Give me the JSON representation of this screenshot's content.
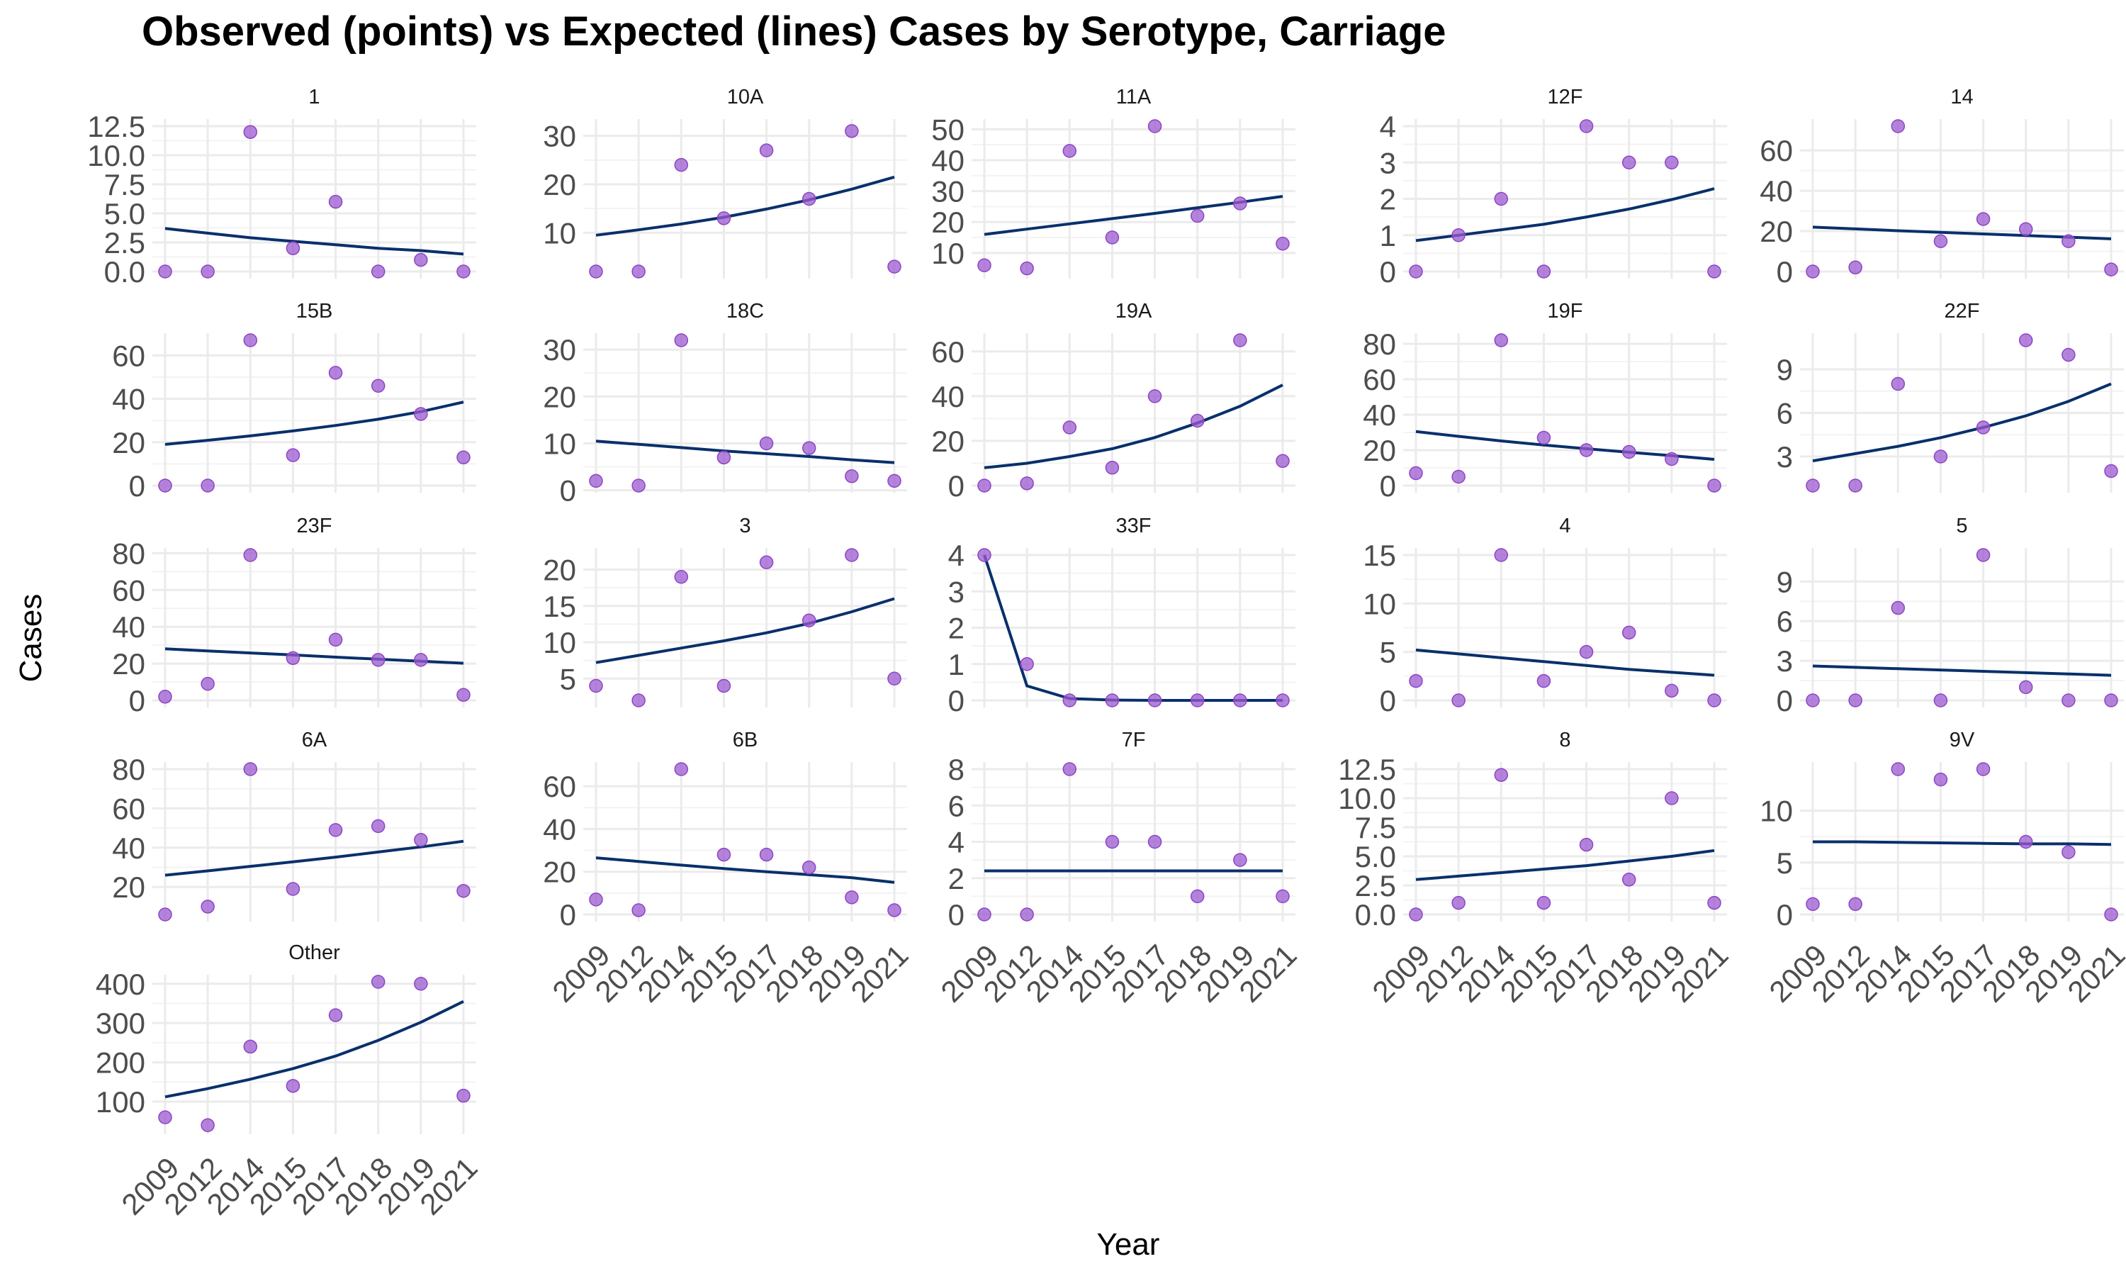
{
  "title": "Observed (points) vs Expected (lines) Cases by Serotype, Carriage",
  "xlabel": "Year",
  "ylabel": "Cases",
  "colors": {
    "observed": "#9b59d0",
    "expected": "#08306b",
    "grid": "#ebebeb"
  },
  "chart_data": {
    "type": "scatter",
    "title": "Observed (points) vs Expected (lines) Cases by Serotype, Carriage",
    "xlabel": "Year",
    "ylabel": "Cases",
    "x": [
      "2009",
      "2012",
      "2014",
      "2015",
      "2017",
      "2018",
      "2019",
      "2021"
    ],
    "layout": "facet grid, 5 columns, 5 rows, free y scales",
    "grid": true,
    "panels": [
      {
        "name": "1",
        "ylim": [
          0,
          12.5
        ],
        "yticks": [
          "0.0",
          "2.5",
          "5.0",
          "7.5",
          "10.0",
          "12.5"
        ],
        "tick_values": [
          0,
          2.5,
          5,
          7.5,
          10,
          12.5
        ],
        "observed": [
          0,
          0,
          12,
          2,
          6,
          0,
          1,
          0
        ],
        "expected": [
          3.7,
          3.3,
          2.9,
          2.6,
          2.3,
          2.0,
          1.8,
          1.5
        ]
      },
      {
        "name": "10A",
        "ylim": [
          2,
          32
        ],
        "yticks": [
          "10",
          "20",
          "30"
        ],
        "tick_values": [
          10,
          20,
          30
        ],
        "observed": [
          2,
          2,
          24,
          13,
          27,
          17,
          31,
          3
        ],
        "expected": [
          9.5,
          10.6,
          11.8,
          13.2,
          14.9,
          16.8,
          19.0,
          21.5
        ]
      },
      {
        "name": "11A",
        "ylim": [
          4,
          51
        ],
        "yticks": [
          "10",
          "20",
          "30",
          "40",
          "50"
        ],
        "tick_values": [
          10,
          20,
          30,
          40,
          50
        ],
        "observed": [
          6,
          5,
          43,
          15,
          51,
          22,
          26,
          13
        ],
        "expected": [
          16,
          17.7,
          19.4,
          21.1,
          22.8,
          24.6,
          26.4,
          28.3
        ]
      },
      {
        "name": "12F",
        "ylim": [
          0,
          4
        ],
        "yticks": [
          "0",
          "1",
          "2",
          "3",
          "4"
        ],
        "tick_values": [
          0,
          1,
          2,
          3,
          4
        ],
        "observed": [
          0,
          1,
          2,
          0,
          4,
          3,
          3,
          0
        ],
        "expected": [
          0.85,
          1.0,
          1.15,
          1.3,
          1.5,
          1.72,
          1.98,
          2.28
        ]
      },
      {
        "name": "14",
        "ylim": [
          0,
          72
        ],
        "yticks": [
          "0",
          "20",
          "40",
          "60"
        ],
        "tick_values": [
          0,
          20,
          40,
          60
        ],
        "observed": [
          0,
          2,
          72,
          15,
          26,
          21,
          15,
          1
        ],
        "expected": [
          22,
          21.1,
          20.2,
          19.4,
          18.6,
          17.8,
          17.0,
          16.2
        ]
      },
      {
        "name": "15B",
        "ylim": [
          0,
          67
        ],
        "yticks": [
          "0",
          "20",
          "40",
          "60"
        ],
        "tick_values": [
          0,
          20,
          40,
          60
        ],
        "observed": [
          0,
          0,
          67,
          14,
          52,
          46,
          33,
          13
        ],
        "expected": [
          19,
          20.9,
          22.9,
          25.2,
          27.7,
          30.6,
          34.1,
          38.5
        ]
      },
      {
        "name": "18C",
        "ylim": [
          1,
          32
        ],
        "yticks": [
          "0",
          "10",
          "20",
          "30"
        ],
        "tick_values": [
          0,
          10,
          20,
          30
        ],
        "observed": [
          2,
          1,
          32,
          7,
          10,
          9,
          3,
          2
        ],
        "expected": [
          10.5,
          9.8,
          9.1,
          8.4,
          7.8,
          7.2,
          6.5,
          5.9
        ]
      },
      {
        "name": "19A",
        "ylim": [
          0,
          65
        ],
        "yticks": [
          "0",
          "20",
          "40",
          "60"
        ],
        "tick_values": [
          0,
          20,
          40,
          60
        ],
        "observed": [
          0,
          1,
          26,
          8,
          40,
          29,
          65,
          11
        ],
        "expected": [
          8,
          10,
          13,
          16.5,
          21.5,
          28,
          35.5,
          45
        ]
      },
      {
        "name": "19F",
        "ylim": [
          0,
          82
        ],
        "yticks": [
          "0",
          "20",
          "40",
          "60",
          "80"
        ],
        "tick_values": [
          0,
          20,
          40,
          60,
          80
        ],
        "observed": [
          7,
          5,
          82,
          27,
          20,
          19,
          15,
          0
        ],
        "expected": [
          30.5,
          27.8,
          25.2,
          22.9,
          20.8,
          18.8,
          16.9,
          14.8
        ]
      },
      {
        "name": "22F",
        "ylim": [
          1,
          11
        ],
        "yticks": [
          "3",
          "6",
          "9"
        ],
        "tick_values": [
          3,
          6,
          9
        ],
        "observed": [
          1,
          1,
          8,
          3,
          5,
          11,
          10,
          2
        ],
        "expected": [
          2.7,
          3.2,
          3.7,
          4.3,
          5.0,
          5.8,
          6.8,
          8.0
        ]
      },
      {
        "name": "23F",
        "ylim": [
          0,
          79
        ],
        "yticks": [
          "0",
          "20",
          "40",
          "60",
          "80"
        ],
        "tick_values": [
          0,
          20,
          40,
          60,
          80
        ],
        "observed": [
          2,
          9,
          79,
          23,
          33,
          22,
          22,
          3
        ],
        "expected": [
          28,
          26.9,
          25.8,
          24.7,
          23.5,
          22.4,
          21.3,
          20.2
        ]
      },
      {
        "name": "3",
        "ylim": [
          2,
          22
        ],
        "yticks": [
          "5",
          "10",
          "15",
          "20"
        ],
        "tick_values": [
          5,
          10,
          15,
          20
        ],
        "observed": [
          4,
          2,
          19,
          4,
          21,
          13,
          22,
          5
        ],
        "expected": [
          7.2,
          8.2,
          9.2,
          10.2,
          11.3,
          12.6,
          14.2,
          16.0
        ]
      },
      {
        "name": "33F",
        "ylim": [
          0,
          4
        ],
        "yticks": [
          "0",
          "1",
          "2",
          "3",
          "4"
        ],
        "tick_values": [
          0,
          1,
          2,
          3,
          4
        ],
        "observed": [
          4,
          1,
          0,
          0,
          0,
          0,
          0,
          0
        ],
        "expected": [
          4,
          0.4,
          0.05,
          0.01,
          0,
          0,
          0,
          0
        ]
      },
      {
        "name": "4",
        "ylim": [
          0,
          15
        ],
        "yticks": [
          "0",
          "5",
          "10",
          "15"
        ],
        "tick_values": [
          0,
          5,
          10,
          15
        ],
        "observed": [
          2,
          0,
          15,
          2,
          5,
          7,
          1,
          0
        ],
        "expected": [
          5.2,
          4.8,
          4.4,
          4.0,
          3.6,
          3.2,
          2.9,
          2.6
        ]
      },
      {
        "name": "5",
        "ylim": [
          0,
          11
        ],
        "yticks": [
          "0",
          "3",
          "6",
          "9"
        ],
        "tick_values": [
          0,
          3,
          6,
          9
        ],
        "observed": [
          0,
          0,
          7,
          0,
          11,
          1,
          0,
          0
        ],
        "expected": [
          2.6,
          2.5,
          2.4,
          2.3,
          2.2,
          2.1,
          2.0,
          1.9
        ]
      },
      {
        "name": "6A",
        "ylim": [
          6,
          80
        ],
        "yticks": [
          "20",
          "40",
          "60",
          "80"
        ],
        "tick_values": [
          20,
          40,
          60,
          80
        ],
        "observed": [
          6,
          10,
          80,
          19,
          49,
          51,
          44,
          18
        ],
        "expected": [
          26,
          28.2,
          30.5,
          32.8,
          35.2,
          37.8,
          40.4,
          43.3
        ]
      },
      {
        "name": "6B",
        "ylim": [
          0,
          68
        ],
        "yticks": [
          "0",
          "20",
          "40",
          "60"
        ],
        "tick_values": [
          0,
          20,
          40,
          60
        ],
        "observed": [
          7,
          2,
          68,
          28,
          28,
          22,
          8,
          2
        ],
        "expected": [
          26.5,
          24.8,
          23.1,
          21.5,
          20.0,
          18.6,
          17.2,
          15.0
        ]
      },
      {
        "name": "7F",
        "ylim": [
          0,
          8
        ],
        "yticks": [
          "0",
          "2",
          "4",
          "6",
          "8"
        ],
        "tick_values": [
          0,
          2,
          4,
          6,
          8
        ],
        "observed": [
          0,
          0,
          8,
          4,
          4,
          1,
          3,
          1
        ],
        "expected": [
          2.4,
          2.4,
          2.4,
          2.4,
          2.4,
          2.4,
          2.4,
          2.4
        ]
      },
      {
        "name": "8",
        "ylim": [
          0,
          12.5
        ],
        "yticks": [
          "0.0",
          "2.5",
          "5.0",
          "7.5",
          "10.0",
          "12.5"
        ],
        "tick_values": [
          0,
          2.5,
          5,
          7.5,
          10,
          12.5
        ],
        "observed": [
          0,
          1,
          12,
          1,
          6,
          3,
          10,
          1
        ],
        "expected": [
          3.0,
          3.3,
          3.6,
          3.9,
          4.2,
          4.6,
          5.0,
          5.5
        ]
      },
      {
        "name": "9V",
        "ylim": [
          0,
          14
        ],
        "yticks": [
          "0",
          "5",
          "10"
        ],
        "tick_values": [
          0,
          5,
          10
        ],
        "observed": [
          1,
          1,
          14,
          13,
          14,
          7,
          6,
          0
        ],
        "expected": [
          7.0,
          7.0,
          6.95,
          6.9,
          6.85,
          6.8,
          6.8,
          6.75
        ]
      },
      {
        "name": "Other",
        "ylim": [
          35,
          405
        ],
        "yticks": [
          "100",
          "200",
          "300",
          "400"
        ],
        "tick_values": [
          100,
          200,
          300,
          400
        ],
        "observed": [
          60,
          40,
          240,
          140,
          320,
          405,
          400,
          115
        ],
        "expected": [
          112,
          133,
          157,
          184,
          216,
          256,
          302,
          355
        ]
      }
    ]
  }
}
